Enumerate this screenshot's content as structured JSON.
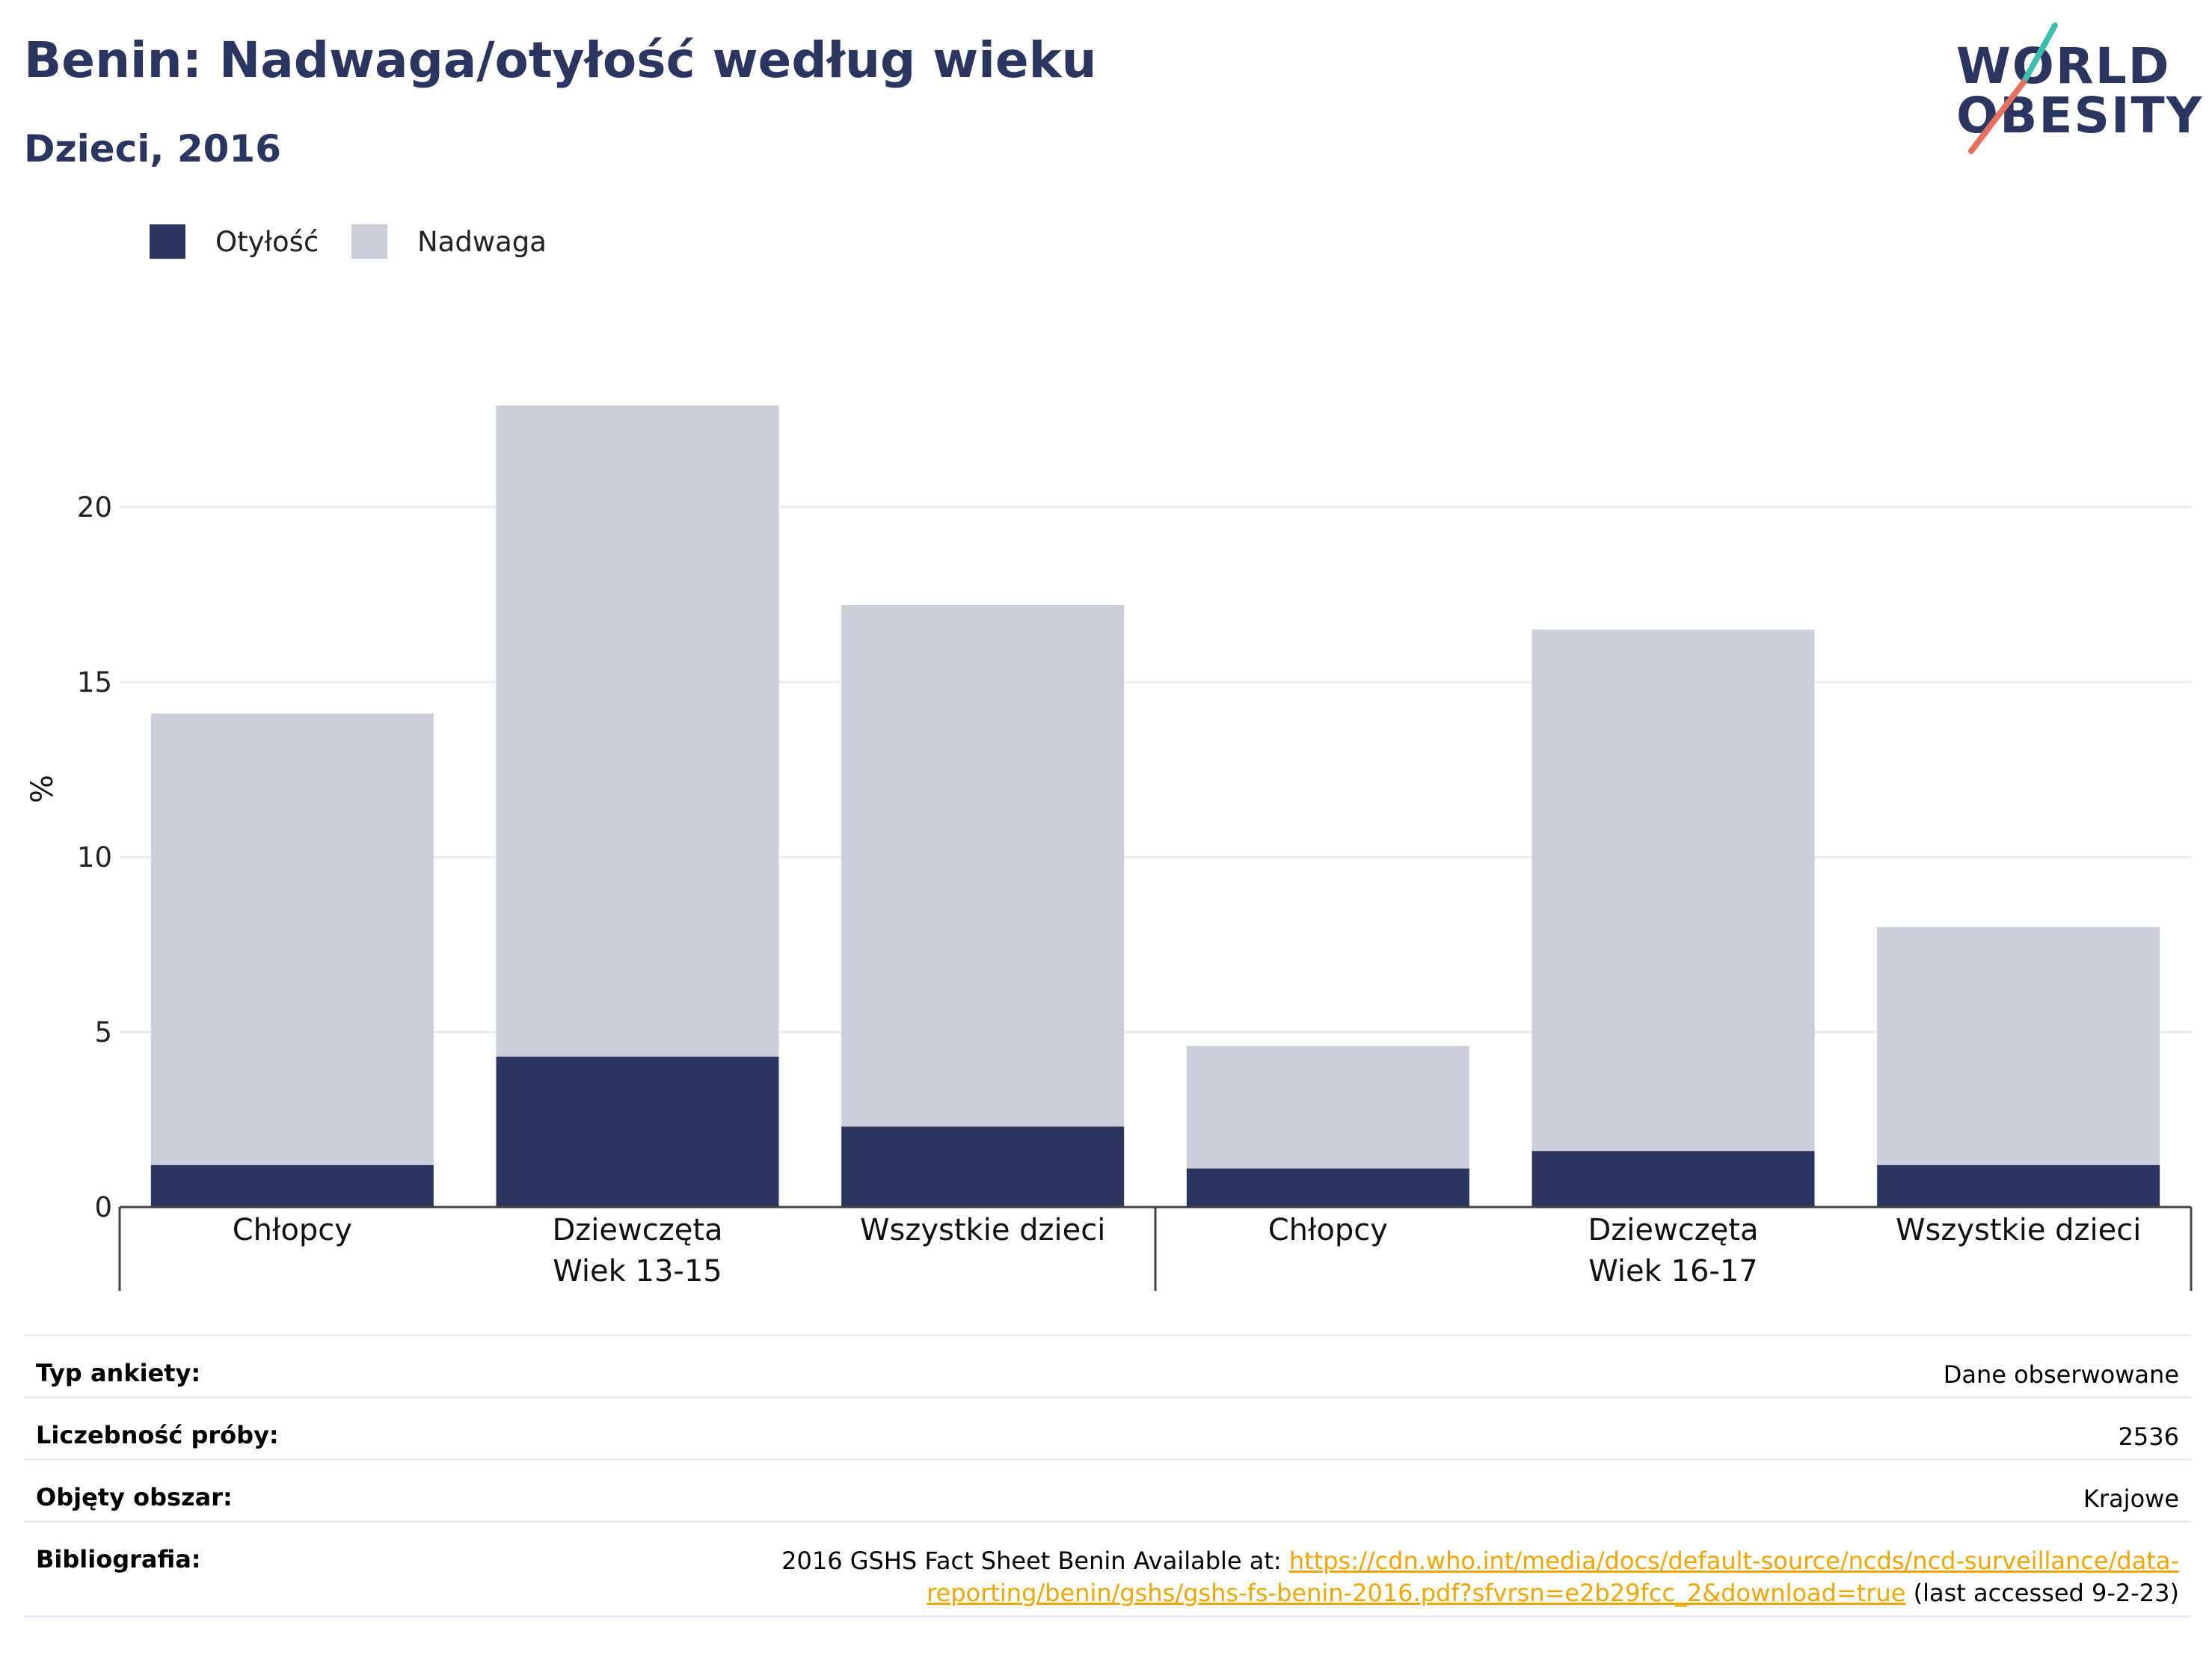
{
  "header": {
    "title": "Benin: Nadwaga/otyłość według wieku",
    "subtitle": "Dzieci, 2016"
  },
  "logo": {
    "line1": "WORLD",
    "line2": "OBESITY"
  },
  "colors": {
    "obesity": "#2a3560",
    "overweight": "#cbcdd9",
    "title": "#2a3560",
    "link": "#f0a500",
    "logo_accent_1": "#3cbfae",
    "logo_accent_2": "#e8705f"
  },
  "chart_data": {
    "type": "bar",
    "stacked": true,
    "ylabel": "%",
    "ylim": [
      0,
      23.5
    ],
    "yticks": [
      0,
      5,
      10,
      15,
      20
    ],
    "grid": true,
    "legend_position": "top-left",
    "groups": [
      {
        "label": "Wiek 13-15",
        "categories": [
          "Chłopcy",
          "Dziewczęta",
          "Wszystkie dzieci"
        ]
      },
      {
        "label": "Wiek 16-17",
        "categories": [
          "Chłopcy",
          "Dziewczęta",
          "Wszystkie dzieci"
        ]
      }
    ],
    "series": [
      {
        "name": "Otyłość",
        "color": "#2a3560",
        "values": [
          1.2,
          4.3,
          2.3,
          1.1,
          1.6,
          1.2
        ]
      },
      {
        "name": "Nadwaga",
        "color": "#cbcdd9",
        "values": [
          12.9,
          18.6,
          14.9,
          3.5,
          14.9,
          6.8
        ]
      }
    ]
  },
  "info": {
    "rows": [
      {
        "key": "Typ ankiety:",
        "value": "Dane obserwowane"
      },
      {
        "key": "Liczebność próby:",
        "value": "2536"
      },
      {
        "key": "Objęty obszar:",
        "value": "Krajowe"
      }
    ],
    "bibliography": {
      "key": "Bibliografia:",
      "prefix": "2016 GSHS Fact Sheet Benin Available at: ",
      "link_line1": "https://cdn.who.int/media/docs/default-source/ncds/ncd-surveillance/data-",
      "link_line2": "reporting/benin/gshs/gshs-fs-benin-2016.pdf?sfvrsn=e2b29fcc_2&download=true",
      "suffix": " (last accessed 9-2-23)"
    }
  }
}
